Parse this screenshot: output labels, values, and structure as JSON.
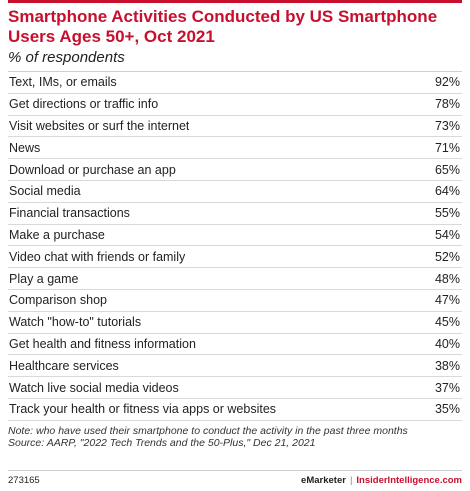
{
  "chart_data": {
    "type": "table",
    "title": "Smartphone Activities Conducted by US Smartphone Users Ages 50+, Oct 2021",
    "subtitle": "% of respondents",
    "categories": [
      "Text, IMs, or emails",
      "Get directions or traffic info",
      "Visit websites or surf the internet",
      "News",
      "Download or purchase an app",
      "Social media",
      "Financial transactions",
      "Make a purchase",
      "Video chat with friends or family",
      "Play a game",
      "Comparison shop",
      "Watch \"how-to\" tutorials",
      "Get health and fitness information",
      "Healthcare services",
      "Watch live social media videos",
      "Track your health or fitness via apps or websites"
    ],
    "values": [
      92,
      78,
      73,
      71,
      65,
      64,
      55,
      54,
      52,
      48,
      47,
      45,
      40,
      38,
      37,
      35
    ],
    "value_labels": [
      "92%",
      "78%",
      "73%",
      "71%",
      "65%",
      "64%",
      "55%",
      "54%",
      "52%",
      "48%",
      "47%",
      "45%",
      "40%",
      "38%",
      "37%",
      "35%"
    ]
  },
  "note": {
    "line1": "Note: who have used their smartphone to conduct the activity in the past three months",
    "line2": "Source: AARP, \"2022 Tech Trends and the 50-Plus,\" Dec 21, 2021"
  },
  "footer": {
    "id": "273165",
    "brand": "eMarketer",
    "separator": "|",
    "brand2": "InsiderIntelligence.com"
  },
  "colors": {
    "accent": "#c8102e",
    "text": "#222222",
    "rule": "#d9d9d9"
  }
}
